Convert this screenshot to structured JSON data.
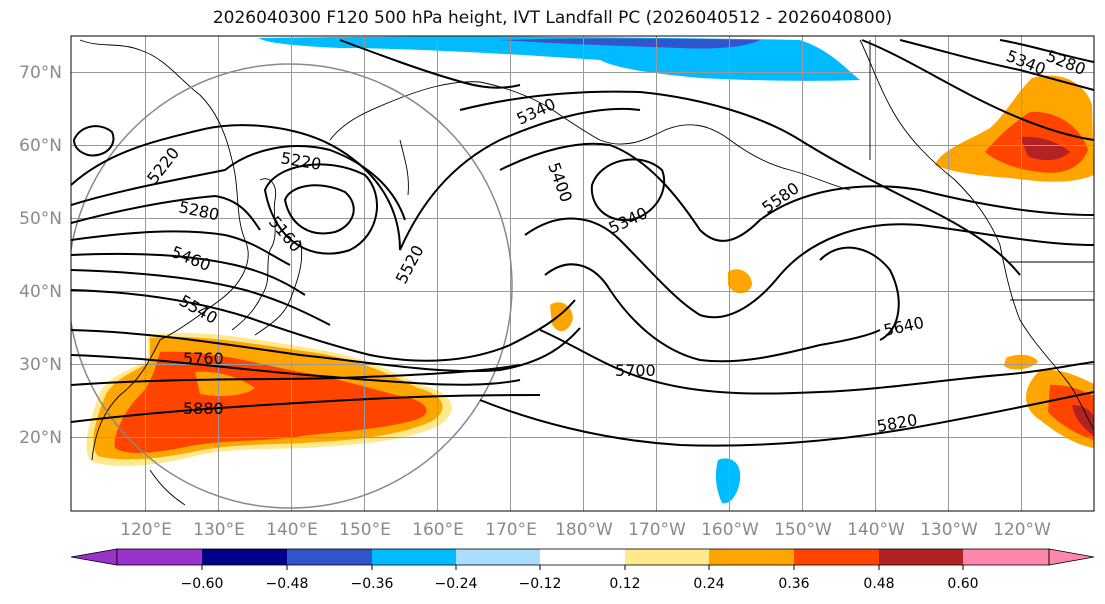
{
  "title": "2026040300 F120 500 hPa height, IVT Landfall PC (2026040512 - 2026040800)",
  "map": {
    "lat_labels": [
      "70°N",
      "60°N",
      "50°N",
      "40°N",
      "30°N",
      "20°N"
    ],
    "lon_labels": [
      "120°E",
      "130°E",
      "140°E",
      "150°E",
      "160°E",
      "170°E",
      "180°W",
      "170°W",
      "160°W",
      "150°W",
      "140°W",
      "130°W",
      "120°W"
    ],
    "contour_labels": [
      "5220",
      "5220",
      "5280",
      "5160",
      "5340",
      "5400",
      "5340",
      "5460",
      "5520",
      "5580",
      "5540",
      "5640",
      "5760",
      "5700",
      "5880",
      "5820",
      "5340",
      "5280"
    ]
  },
  "colorbar": {
    "colors": [
      "#9933cc",
      "#000088",
      "#3355cc",
      "#00bbff",
      "#aaddff",
      "#ffffff",
      "#ffe98a",
      "#ffa500",
      "#ff4400",
      "#b22222",
      "#ff88aa"
    ],
    "tick_labels": [
      "−0.60",
      "−0.48",
      "−0.36",
      "−0.24",
      "−0.12",
      "0.12",
      "0.24",
      "0.36",
      "0.48",
      "0.60"
    ]
  }
}
